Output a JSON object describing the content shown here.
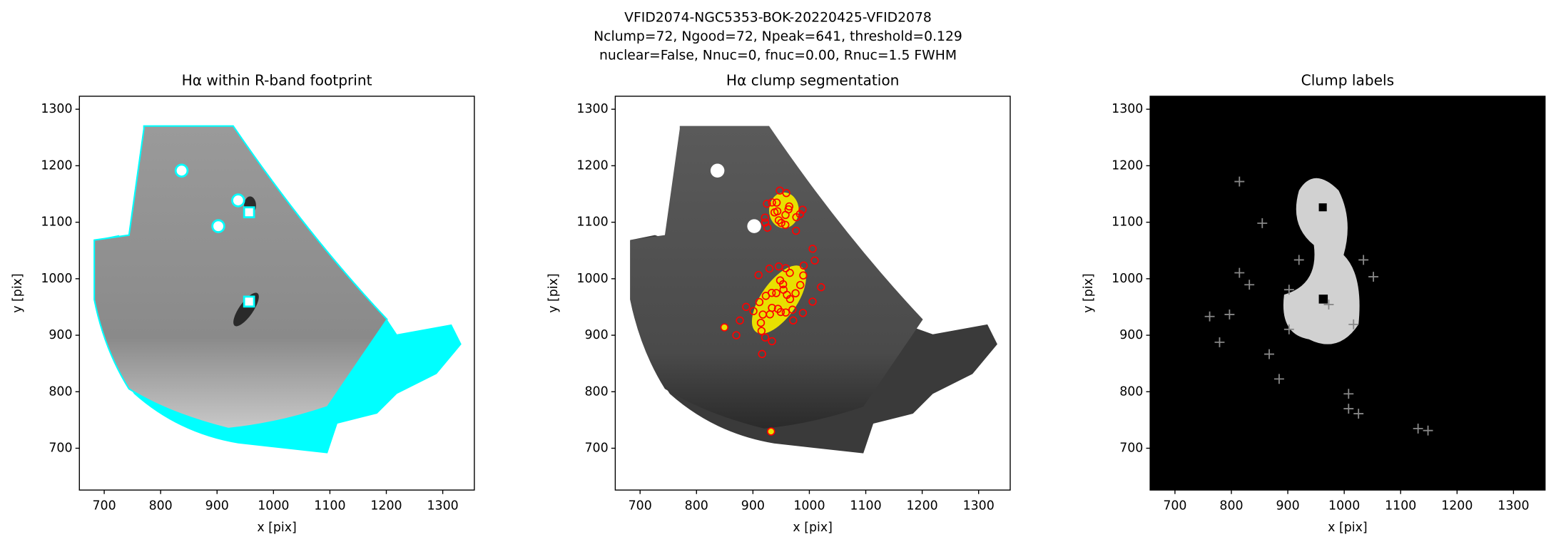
{
  "figure": {
    "title_lines": [
      "VFID2074-NGC5353-BOK-20220425-VFID2078",
      "Nclump=72, Ngood=72, Npeak=641, threshold=0.129",
      "nuclear=False, Nnuc=0, fnuc=0.00, Rnuc=1.5 FWHM"
    ]
  },
  "chart_data": [
    {
      "type": "image",
      "title": "Hα within R-band footprint",
      "xlabel": "x [pix]",
      "ylabel": "y [pix]",
      "xlim": [
        656,
        1356
      ],
      "ylim": [
        626,
        1323
      ],
      "xticks": [
        700,
        800,
        900,
        1000,
        1100,
        1200,
        1300
      ],
      "yticks": [
        700,
        800,
        900,
        1000,
        1100,
        1200,
        1300
      ]
    },
    {
      "type": "image",
      "title": "Hα clump segmentation",
      "xlabel": "x [pix]",
      "ylabel": "y [pix]",
      "xlim": [
        656,
        1356
      ],
      "ylim": [
        626,
        1323
      ],
      "xticks": [
        700,
        800,
        900,
        1000,
        1100,
        1200,
        1300
      ],
      "yticks": [
        700,
        800,
        900,
        1000,
        1100,
        1200,
        1300
      ]
    },
    {
      "type": "image",
      "title": "Clump labels",
      "xlabel": "x [pix]",
      "ylabel": "y [pix]",
      "xlim": [
        656,
        1356
      ],
      "ylim": [
        626,
        1323
      ],
      "xticks": [
        700,
        800,
        900,
        1000,
        1100,
        1200,
        1300
      ],
      "yticks": [
        700,
        800,
        900,
        1000,
        1100,
        1200,
        1300
      ]
    }
  ]
}
